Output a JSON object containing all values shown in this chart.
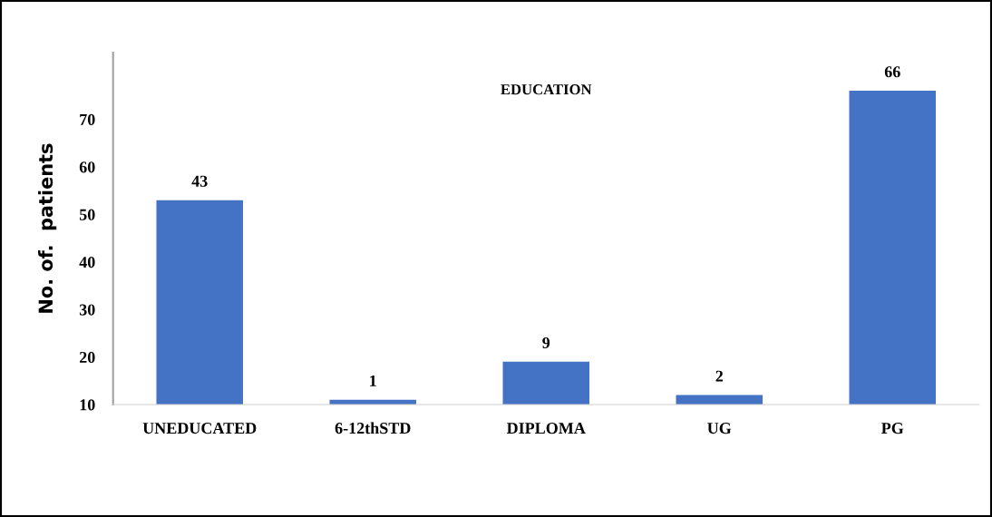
{
  "chart_data": {
    "type": "bar",
    "title": "EDUCATION",
    "ylabel": "No. of.  patients",
    "categories": [
      "UNEDUCATED",
      "6-12thSTD",
      "DIPLOMA",
      "UG",
      "PG"
    ],
    "values": [
      43,
      1,
      9,
      2,
      66
    ],
    "base": [
      10,
      10,
      10,
      10,
      10
    ],
    "color": "#4472c4",
    "ylim": [
      10,
      84
    ],
    "yticks": [
      10,
      20,
      30,
      40,
      50,
      60,
      70
    ],
    "data_labels": true,
    "grid": false,
    "legend": false
  }
}
